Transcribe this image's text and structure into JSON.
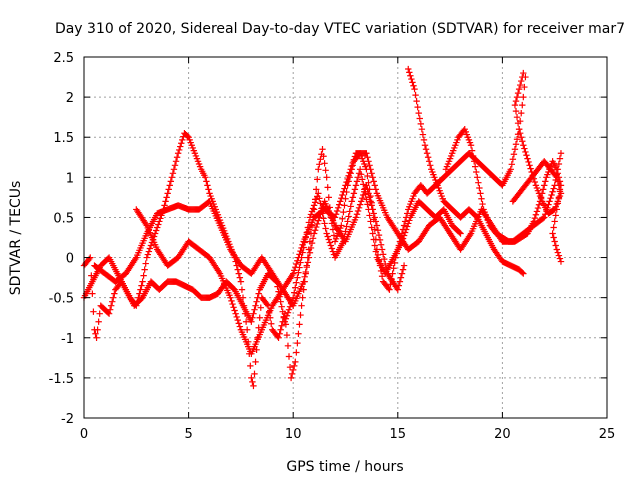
{
  "chart_data": {
    "type": "scatter",
    "title": "Day 310 of 2020, Sidereal Day-to-day VTEC variation (SDTVAR) for receiver mar7",
    "xlabel": "GPS time / hours",
    "ylabel": "SDTVAR / TECUs",
    "xlim": [
      0,
      25
    ],
    "ylim": [
      -2,
      2.5
    ],
    "x_ticks": [
      "0",
      "5",
      "10",
      "15",
      "20",
      "25"
    ],
    "y_ticks": [
      "2.5",
      "2",
      "1.5",
      "1",
      "0.5",
      "0",
      "-0.5",
      "-1",
      "-1.5",
      "-2"
    ],
    "grid": true,
    "marker": "+",
    "color": "#ff0000",
    "series": [
      {
        "name": "s1",
        "points": [
          [
            0.0,
            -0.1
          ],
          [
            0.3,
            0.0
          ],
          [
            0.5,
            -0.9
          ],
          [
            0.6,
            -1.0
          ],
          [
            0.8,
            -0.6
          ],
          [
            1.2,
            -0.7
          ],
          [
            1.5,
            -0.4
          ],
          [
            1.8,
            -0.3
          ],
          [
            2.2,
            -0.5
          ],
          [
            2.5,
            -0.6
          ],
          [
            2.8,
            -0.3
          ],
          [
            3.0,
            0.0
          ],
          [
            3.4,
            0.3
          ],
          [
            3.8,
            0.6
          ],
          [
            4.2,
            1.0
          ],
          [
            4.5,
            1.3
          ],
          [
            4.8,
            1.55
          ],
          [
            5.0,
            1.5
          ],
          [
            5.3,
            1.3
          ],
          [
            5.6,
            1.1
          ],
          [
            5.8,
            1.0
          ],
          [
            6.0,
            0.8
          ],
          [
            6.3,
            0.6
          ],
          [
            6.6,
            0.4
          ],
          [
            6.9,
            0.2
          ],
          [
            7.2,
            0.0
          ],
          [
            7.5,
            -0.3
          ],
          [
            7.8,
            -0.9
          ],
          [
            8.0,
            -1.5
          ],
          [
            8.1,
            -1.6
          ],
          [
            8.3,
            -1.0
          ],
          [
            8.5,
            -0.5
          ],
          [
            8.8,
            -0.6
          ],
          [
            9.0,
            -0.9
          ],
          [
            9.3,
            -1.0
          ],
          [
            9.6,
            -0.7
          ],
          [
            9.9,
            -1.5
          ],
          [
            10.1,
            -1.3
          ],
          [
            10.4,
            -0.6
          ],
          [
            10.7,
            0.0
          ],
          [
            11.0,
            0.6
          ],
          [
            11.2,
            1.1
          ],
          [
            11.4,
            1.35
          ],
          [
            11.6,
            1.0
          ],
          [
            11.8,
            0.5
          ],
          [
            12.0,
            0.2
          ],
          [
            12.3,
            0.4
          ],
          [
            12.6,
            0.9
          ],
          [
            12.9,
            1.2
          ],
          [
            13.2,
            1.3
          ],
          [
            13.5,
            1.1
          ],
          [
            13.8,
            0.6
          ],
          [
            14.0,
            0.1
          ],
          [
            14.3,
            -0.3
          ],
          [
            14.6,
            -0.4
          ],
          [
            14.9,
            0.0
          ],
          [
            15.2,
            0.3
          ],
          [
            15.5,
            0.6
          ],
          [
            15.8,
            0.8
          ],
          [
            16.1,
            0.9
          ],
          [
            16.4,
            0.8
          ],
          [
            16.8,
            0.9
          ],
          [
            17.2,
            1.0
          ],
          [
            17.6,
            1.1
          ],
          [
            18.0,
            1.2
          ],
          [
            18.4,
            1.3
          ],
          [
            18.8,
            1.2
          ],
          [
            19.2,
            1.1
          ],
          [
            19.6,
            1.0
          ],
          [
            20.0,
            0.9
          ],
          [
            20.4,
            1.1
          ],
          [
            20.8,
            1.6
          ],
          [
            21.0,
            2.0
          ],
          [
            21.1,
            2.25
          ]
        ]
      },
      {
        "name": "s2",
        "points": [
          [
            0.0,
            -0.5
          ],
          [
            0.4,
            -0.3
          ],
          [
            0.8,
            -0.1
          ],
          [
            1.2,
            0.0
          ],
          [
            1.6,
            -0.2
          ],
          [
            2.0,
            -0.4
          ],
          [
            2.4,
            -0.6
          ],
          [
            2.8,
            -0.5
          ],
          [
            3.2,
            -0.3
          ],
          [
            3.6,
            -0.4
          ],
          [
            4.0,
            -0.3
          ],
          [
            4.4,
            -0.3
          ],
          [
            4.8,
            -0.35
          ],
          [
            5.2,
            -0.4
          ],
          [
            5.6,
            -0.5
          ],
          [
            6.0,
            -0.5
          ],
          [
            6.4,
            -0.45
          ],
          [
            6.8,
            -0.3
          ],
          [
            7.2,
            -0.4
          ],
          [
            7.6,
            -0.6
          ],
          [
            8.0,
            -0.8
          ],
          [
            8.4,
            -0.4
          ],
          [
            8.8,
            -0.2
          ],
          [
            9.2,
            -0.3
          ],
          [
            9.6,
            -0.8
          ],
          [
            10.0,
            -0.5
          ],
          [
            10.4,
            0.0
          ],
          [
            10.8,
            0.5
          ],
          [
            11.2,
            0.8
          ],
          [
            11.6,
            0.3
          ],
          [
            12.0,
            0.0
          ],
          [
            12.4,
            0.2
          ],
          [
            12.8,
            0.7
          ],
          [
            13.2,
            1.1
          ],
          [
            13.6,
            0.6
          ],
          [
            14.0,
            0.0
          ],
          [
            14.4,
            -0.2
          ],
          [
            14.8,
            0.0
          ],
          [
            15.2,
            0.2
          ],
          [
            15.6,
            0.5
          ],
          [
            16.0,
            0.7
          ],
          [
            16.4,
            0.6
          ],
          [
            16.8,
            0.5
          ],
          [
            17.2,
            0.6
          ],
          [
            17.6,
            0.4
          ],
          [
            18.0,
            0.3
          ]
        ]
      },
      {
        "name": "s3",
        "points": [
          [
            0.5,
            -0.1
          ],
          [
            1.0,
            -0.2
          ],
          [
            1.5,
            -0.3
          ],
          [
            2.0,
            -0.2
          ],
          [
            2.5,
            0.0
          ],
          [
            3.0,
            0.3
          ],
          [
            3.5,
            0.55
          ],
          [
            4.0,
            0.6
          ],
          [
            4.5,
            0.65
          ],
          [
            5.0,
            0.6
          ],
          [
            5.5,
            0.6
          ],
          [
            6.0,
            0.7
          ],
          [
            6.5,
            0.4
          ],
          [
            7.0,
            0.1
          ],
          [
            7.5,
            -0.1
          ],
          [
            8.0,
            -0.2
          ],
          [
            8.5,
            0.0
          ],
          [
            9.0,
            -0.2
          ],
          [
            9.5,
            -0.4
          ],
          [
            10.0,
            -0.2
          ],
          [
            10.5,
            0.2
          ],
          [
            11.0,
            0.5
          ],
          [
            11.5,
            0.6
          ],
          [
            12.0,
            0.5
          ],
          [
            12.5,
            0.9
          ],
          [
            13.0,
            1.3
          ],
          [
            13.5,
            1.3
          ],
          [
            14.0,
            0.8
          ],
          [
            14.5,
            0.5
          ],
          [
            15.0,
            0.3
          ],
          [
            15.5,
            0.1
          ],
          [
            16.0,
            0.2
          ],
          [
            16.5,
            0.4
          ],
          [
            17.0,
            0.5
          ],
          [
            17.5,
            0.3
          ],
          [
            18.0,
            0.1
          ],
          [
            18.5,
            0.3
          ],
          [
            19.0,
            0.6
          ],
          [
            19.5,
            0.4
          ],
          [
            20.0,
            0.2
          ],
          [
            20.5,
            0.2
          ],
          [
            21.0,
            0.3
          ],
          [
            21.5,
            0.4
          ],
          [
            22.0,
            0.5
          ],
          [
            22.5,
            0.9
          ],
          [
            22.8,
            1.3
          ]
        ]
      },
      {
        "name": "s4",
        "points": [
          [
            2.5,
            0.6
          ],
          [
            3.0,
            0.4
          ],
          [
            3.5,
            0.1
          ],
          [
            4.0,
            -0.1
          ],
          [
            4.5,
            0.0
          ],
          [
            5.0,
            0.2
          ],
          [
            5.5,
            0.1
          ],
          [
            6.0,
            0.0
          ],
          [
            6.5,
            -0.2
          ],
          [
            7.0,
            -0.5
          ],
          [
            7.5,
            -0.9
          ],
          [
            8.0,
            -1.2
          ],
          [
            8.5,
            -0.9
          ],
          [
            9.0,
            -0.6
          ],
          [
            9.5,
            -0.4
          ],
          [
            10.0,
            -0.6
          ],
          [
            10.5,
            -0.3
          ],
          [
            11.0,
            0.3
          ],
          [
            11.5,
            0.7
          ],
          [
            12.0,
            0.4
          ],
          [
            12.5,
            0.2
          ],
          [
            13.0,
            0.5
          ],
          [
            13.5,
            0.9
          ],
          [
            14.0,
            0.4
          ],
          [
            14.5,
            -0.2
          ],
          [
            15.0,
            -0.4
          ],
          [
            15.3,
            -0.1
          ]
        ]
      },
      {
        "name": "s5",
        "points": [
          [
            15.5,
            2.35
          ],
          [
            15.8,
            2.1
          ],
          [
            16.0,
            1.8
          ],
          [
            16.3,
            1.4
          ],
          [
            16.6,
            1.1
          ],
          [
            16.9,
            0.9
          ],
          [
            17.2,
            0.7
          ],
          [
            17.6,
            0.6
          ],
          [
            18.0,
            0.5
          ],
          [
            18.4,
            0.6
          ],
          [
            18.8,
            0.5
          ],
          [
            19.2,
            0.3
          ],
          [
            19.6,
            0.1
          ],
          [
            20.0,
            -0.05
          ],
          [
            20.4,
            -0.1
          ],
          [
            20.8,
            -0.15
          ],
          [
            21.0,
            -0.2
          ]
        ]
      },
      {
        "name": "s6",
        "points": [
          [
            17.3,
            1.1
          ],
          [
            17.6,
            1.3
          ],
          [
            17.9,
            1.5
          ],
          [
            18.2,
            1.6
          ],
          [
            18.5,
            1.4
          ],
          [
            18.8,
            1.0
          ],
          [
            19.1,
            0.6
          ],
          [
            19.4,
            0.4
          ],
          [
            19.7,
            0.3
          ],
          [
            20.0,
            0.25
          ],
          [
            20.3,
            0.2
          ],
          [
            20.6,
            0.2
          ],
          [
            20.9,
            0.25
          ],
          [
            21.2,
            0.3
          ],
          [
            21.5,
            0.45
          ],
          [
            21.8,
            0.7
          ],
          [
            22.1,
            1.0
          ],
          [
            22.4,
            1.2
          ],
          [
            22.6,
            1.1
          ],
          [
            22.8,
            0.9
          ],
          [
            22.6,
            0.6
          ],
          [
            22.4,
            0.3
          ],
          [
            22.6,
            0.1
          ],
          [
            22.8,
            -0.05
          ]
        ]
      },
      {
        "name": "s7",
        "points": [
          [
            20.5,
            0.7
          ],
          [
            20.8,
            0.8
          ],
          [
            21.1,
            0.9
          ],
          [
            21.4,
            1.0
          ],
          [
            21.7,
            1.1
          ],
          [
            22.0,
            1.2
          ],
          [
            22.3,
            1.1
          ],
          [
            22.6,
            1.0
          ],
          [
            22.8,
            0.8
          ],
          [
            22.5,
            0.6
          ],
          [
            22.2,
            0.55
          ],
          [
            21.9,
            0.7
          ],
          [
            21.6,
            0.9
          ],
          [
            21.3,
            1.15
          ],
          [
            21.0,
            1.4
          ],
          [
            20.8,
            1.6
          ],
          [
            20.6,
            1.9
          ],
          [
            20.8,
            2.1
          ],
          [
            21.0,
            2.3
          ]
        ]
      }
    ]
  }
}
